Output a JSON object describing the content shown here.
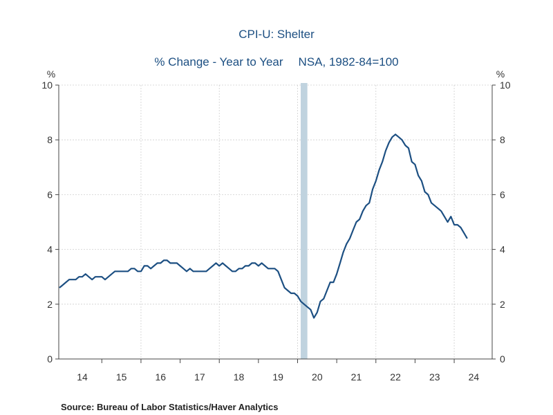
{
  "chart_data": {
    "type": "line",
    "title": "CPI-U: Shelter",
    "subtitle_left": "% Change - Year to Year",
    "subtitle_right": "NSA, 1982-84=100",
    "left_unit": "%",
    "right_unit": "%",
    "ylim": [
      0,
      10
    ],
    "yticks": [
      0,
      2,
      4,
      6,
      8,
      10
    ],
    "xlim": [
      2013.9,
      2024.97
    ],
    "xtick_labels": [
      "14",
      "15",
      "16",
      "17",
      "18",
      "19",
      "20",
      "21",
      "22",
      "23",
      "24"
    ],
    "grid": true,
    "recession": [
      2020.08,
      2020.25
    ],
    "series": [
      {
        "color": "#1c4f82",
        "x_start": 2013.917,
        "x_step": 0.08333,
        "values": [
          2.6,
          2.7,
          2.8,
          2.9,
          2.9,
          2.9,
          3.0,
          3.0,
          3.1,
          3.0,
          2.9,
          3.0,
          3.0,
          3.0,
          2.9,
          3.0,
          3.1,
          3.2,
          3.2,
          3.2,
          3.2,
          3.2,
          3.3,
          3.3,
          3.2,
          3.2,
          3.4,
          3.4,
          3.3,
          3.4,
          3.5,
          3.5,
          3.6,
          3.6,
          3.5,
          3.5,
          3.5,
          3.4,
          3.3,
          3.2,
          3.3,
          3.2,
          3.2,
          3.2,
          3.2,
          3.2,
          3.3,
          3.4,
          3.5,
          3.4,
          3.5,
          3.4,
          3.3,
          3.2,
          3.2,
          3.3,
          3.3,
          3.4,
          3.4,
          3.5,
          3.5,
          3.4,
          3.5,
          3.4,
          3.3,
          3.3,
          3.3,
          3.2,
          2.9,
          2.6,
          2.5,
          2.4,
          2.4,
          2.3,
          2.1,
          2.0,
          1.9,
          1.8,
          1.5,
          1.7,
          2.1,
          2.2,
          2.5,
          2.8,
          2.8,
          3.1,
          3.5,
          3.9,
          4.2,
          4.4,
          4.7,
          5.0,
          5.1,
          5.4,
          5.6,
          5.7,
          6.2,
          6.5,
          6.9,
          7.2,
          7.6,
          7.9,
          8.1,
          8.2,
          8.1,
          8.0,
          7.8,
          7.7,
          7.2,
          7.1,
          6.7,
          6.5,
          6.1,
          6.0,
          5.7,
          5.6,
          5.5,
          5.4,
          5.2,
          5.0,
          5.2,
          4.9,
          4.9,
          4.8,
          4.6,
          4.4
        ]
      }
    ]
  },
  "source": "Source:  Bureau of Labor Statistics/Haver Analytics"
}
